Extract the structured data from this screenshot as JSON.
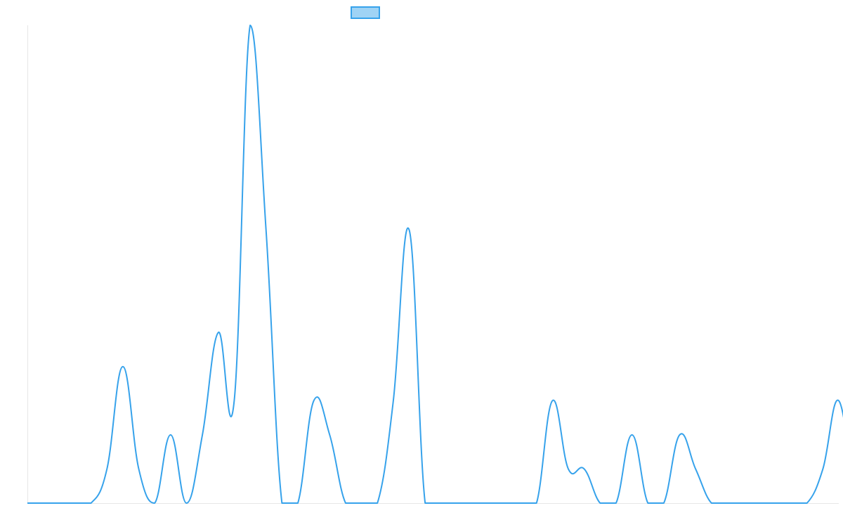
{
  "chart_data": {
    "type": "line",
    "title": "",
    "xlabel": "",
    "ylabel": "",
    "grid": false,
    "legend": {
      "placement": "top-center",
      "entries": [
        {
          "label": "",
          "fill_color": "#9fd3f5",
          "stroke_color": "#36a2eb"
        }
      ]
    },
    "xlim": [
      0,
      51
    ],
    "ylim": [
      0,
      14
    ],
    "series": [
      {
        "color": "#36a2eb",
        "interpolation": "smooth",
        "values": [
          0,
          0,
          0,
          0,
          0,
          1,
          4,
          1,
          0,
          2,
          0,
          2,
          5,
          3,
          14,
          8,
          0,
          0,
          3,
          2,
          0,
          0,
          0,
          3,
          8,
          0,
          0,
          0,
          0,
          0,
          0,
          0,
          0,
          3,
          1,
          1,
          0,
          0,
          2,
          0,
          0,
          2,
          1,
          0,
          0,
          0,
          0,
          0,
          0,
          0,
          1,
          3,
          0
        ]
      }
    ]
  }
}
